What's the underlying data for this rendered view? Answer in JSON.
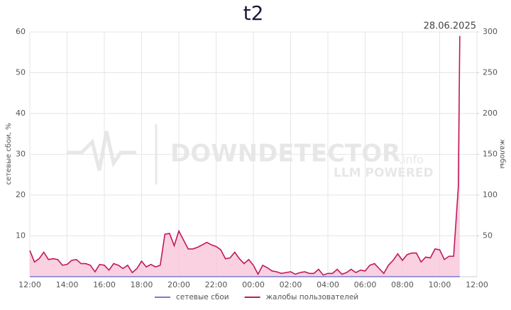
{
  "chart_data": {
    "type": "line",
    "title": "t2",
    "date": "28.06.2025",
    "watermark": [
      "DOWNDETECTOR",
      ".info",
      "LLM POWERED"
    ],
    "ylabel": "сетевые сбои, %",
    "y2label": "жалобы",
    "xlim": [
      12,
      36
    ],
    "xticks": [
      {
        "value": 12,
        "label": "12:00"
      },
      {
        "value": 14,
        "label": "14:00"
      },
      {
        "value": 16,
        "label": "16:00"
      },
      {
        "value": 18,
        "label": "18:00"
      },
      {
        "value": 20,
        "label": "20:00"
      },
      {
        "value": 22,
        "label": "22:00"
      },
      {
        "value": 24,
        "label": "00:00"
      },
      {
        "value": 26,
        "label": "02:00"
      },
      {
        "value": 28,
        "label": "04:00"
      },
      {
        "value": 30,
        "label": "06:00"
      },
      {
        "value": 32,
        "label": "08:00"
      },
      {
        "value": 34,
        "label": "10:00"
      },
      {
        "value": 36,
        "label": "12:00"
      }
    ],
    "ylim": [
      0,
      60
    ],
    "yticks": [
      10,
      20,
      30,
      40,
      50,
      60
    ],
    "y2lim": [
      0,
      300
    ],
    "y2ticks": [
      50,
      100,
      150,
      200,
      250,
      300
    ],
    "grid": true,
    "legend": "bottom",
    "x": [
      12,
      12.25,
      12.5,
      12.75,
      13,
      13.25,
      13.5,
      13.75,
      14,
      14.25,
      14.5,
      14.75,
      15,
      15.25,
      15.5,
      15.75,
      16,
      16.25,
      16.5,
      16.75,
      17,
      17.25,
      17.5,
      17.75,
      18,
      18.25,
      18.5,
      18.75,
      19,
      19.25,
      19.5,
      19.75,
      20,
      20.25,
      20.5,
      20.75,
      21,
      21.25,
      21.5,
      21.75,
      22,
      22.25,
      22.5,
      22.75,
      23,
      23.25,
      23.5,
      23.75,
      24,
      24.25,
      24.5,
      24.75,
      25,
      25.25,
      25.5,
      25.75,
      26,
      26.25,
      26.5,
      26.75,
      27,
      27.25,
      27.5,
      27.75,
      28,
      28.25,
      28.5,
      28.75,
      29,
      29.25,
      29.5,
      29.75,
      30,
      30.25,
      30.5,
      30.75,
      31,
      31.25,
      31.5,
      31.75,
      32,
      32.25,
      32.5,
      32.75,
      33,
      33.25,
      33.5,
      33.75,
      34,
      34.25,
      34.5,
      34.75,
      35,
      35.08
    ],
    "series": [
      {
        "name": "сетевые сбои",
        "color": "#7b7bd6",
        "axis": "y",
        "values": [
          0,
          0,
          0,
          0,
          0,
          0,
          0,
          0,
          0,
          0,
          0,
          0,
          0,
          0,
          0,
          0,
          0,
          0,
          0,
          0,
          0,
          0,
          0,
          0,
          0,
          0,
          0,
          0,
          0,
          0,
          0,
          0,
          0,
          0,
          0,
          0,
          0,
          0,
          0,
          0,
          0,
          0,
          0,
          0,
          0,
          0,
          0,
          0,
          0,
          0,
          0,
          0,
          0,
          0,
          0,
          0,
          0,
          0,
          0,
          0,
          0,
          0,
          0,
          0,
          0,
          0,
          0,
          0,
          0,
          0,
          0,
          0,
          0,
          0,
          0,
          0,
          0,
          0,
          0,
          0,
          0,
          0,
          0,
          0,
          0,
          0,
          0,
          0,
          0,
          0,
          0,
          0,
          0,
          0
        ]
      },
      {
        "name": "жалобы пользователей",
        "color": "#c2185b",
        "axis": "y2",
        "fill": "#f8c6d8",
        "values": [
          32,
          18,
          22,
          30,
          21,
          22,
          21,
          14,
          15,
          20,
          21,
          16,
          16,
          14,
          6,
          15,
          14,
          8,
          16,
          14,
          10,
          14,
          5,
          10,
          19,
          12,
          15,
          12,
          14,
          52,
          53,
          38,
          56,
          45,
          34,
          34,
          36,
          39,
          42,
          39,
          37,
          33,
          22,
          23,
          30,
          22,
          16,
          21,
          14,
          3,
          14,
          11,
          7,
          6,
          4,
          5,
          6,
          3,
          5,
          6,
          4,
          4,
          9,
          2,
          4,
          4,
          9,
          3,
          5,
          9,
          5,
          8,
          7,
          14,
          16,
          10,
          4,
          14,
          20,
          28,
          20,
          27,
          29,
          29,
          18,
          24,
          23,
          34,
          33,
          21,
          25,
          25,
          110,
          295
        ]
      }
    ]
  }
}
